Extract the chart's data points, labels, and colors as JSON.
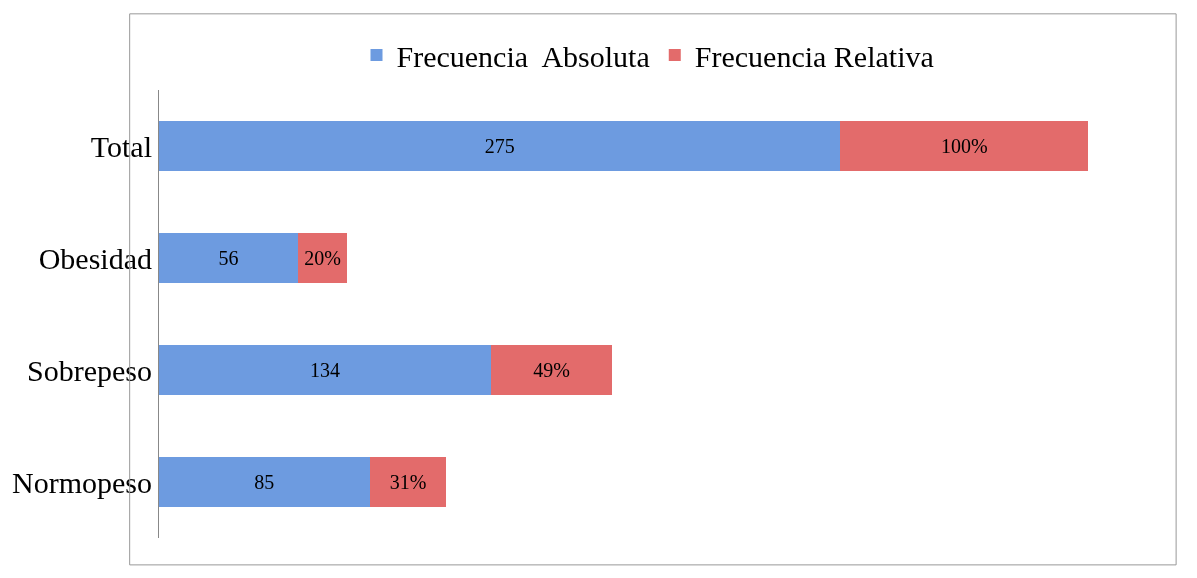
{
  "chart_data": {
    "type": "bar",
    "orientation": "horizontal",
    "stacked": true,
    "tick_labels": "y",
    "legend": "top",
    "categories": [
      "Total",
      "Obesidad",
      "Sobrepeso",
      "Normopeso"
    ],
    "series": [
      {
        "name": "Frecuencia  Absoluta",
        "color": "#6d9be0",
        "values": [
          275,
          56,
          134,
          85
        ],
        "value_labels": [
          "275",
          "56",
          "134",
          "85"
        ]
      },
      {
        "name": "Frecuencia Relativa",
        "color": "#e36b6b",
        "values": [
          100,
          20,
          49,
          31
        ],
        "value_labels": [
          "100%",
          "20%",
          "49%",
          "31%"
        ]
      }
    ]
  }
}
